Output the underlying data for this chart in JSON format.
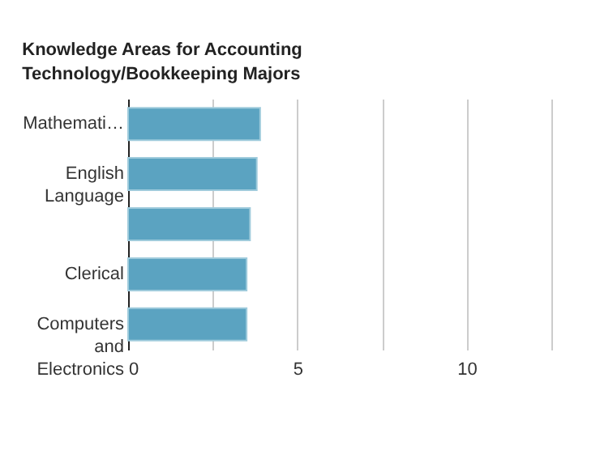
{
  "chart_data": {
    "type": "bar",
    "orientation": "horizontal",
    "title": "Knowledge Areas for Accounting Technology/Bookkeeping Majors",
    "categories": [
      "Mathemati…",
      "English Language",
      null,
      "Clerical",
      "Computers and Electronics"
    ],
    "values": [
      3.9,
      3.8,
      3.6,
      3.5,
      3.5
    ],
    "color": "#5ba3c1",
    "xlim": [
      0,
      12.5
    ],
    "xticks": [
      0,
      {
        "value": 2.5,
        "label": null
      },
      5,
      {
        "value": 7.5,
        "label": null
      },
      10,
      {
        "value": 12.5,
        "label": null
      }
    ],
    "grid": "x"
  }
}
